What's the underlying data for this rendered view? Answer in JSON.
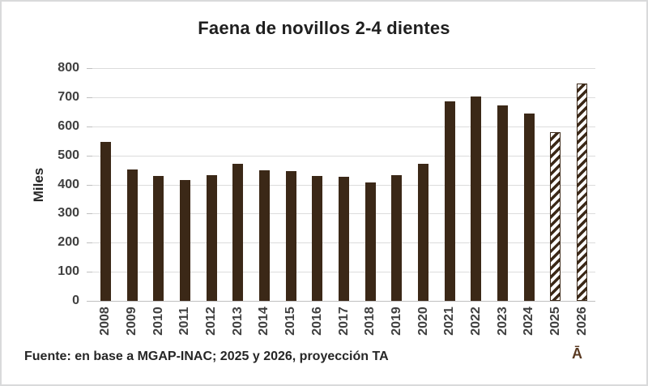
{
  "chart_data": {
    "type": "bar",
    "title": "Faena de novillos 2-4 dientes",
    "ylabel": "Miles",
    "xlabel": "",
    "categories": [
      "2008",
      "2009",
      "2010",
      "2011",
      "2012",
      "2013",
      "2014",
      "2015",
      "2016",
      "2017",
      "2018",
      "2019",
      "2020",
      "2021",
      "2022",
      "2023",
      "2024",
      "2025",
      "2026"
    ],
    "values": [
      546,
      452,
      429,
      414,
      431,
      470,
      450,
      446,
      428,
      427,
      408,
      433,
      470,
      685,
      703,
      673,
      645,
      581,
      746
    ],
    "hatched_categories": [
      "2025",
      "2026"
    ],
    "hatch_note": "2025 and 2026 drawn with diagonal upward hatch pattern (projections)",
    "ylim": [
      0,
      800
    ],
    "yticks": [
      0,
      100,
      200,
      300,
      400,
      500,
      600,
      700,
      800
    ],
    "grid": true,
    "legend": "none",
    "bar_color": "#3b2817",
    "gridline_color": "#dcdcdc",
    "axis_line_color": "#bfbfbf",
    "tick_text_color": "#404040",
    "title_color": "#1f1f1f"
  },
  "footer": {
    "source": "Fuente: en base a MGAP-INAC; 2025 y 2026, proyección TA",
    "watermark": "Ā",
    "watermark_color": "#5a3a22"
  },
  "frame": {
    "background": "#ffffff",
    "border_color": "#d9dadb"
  }
}
